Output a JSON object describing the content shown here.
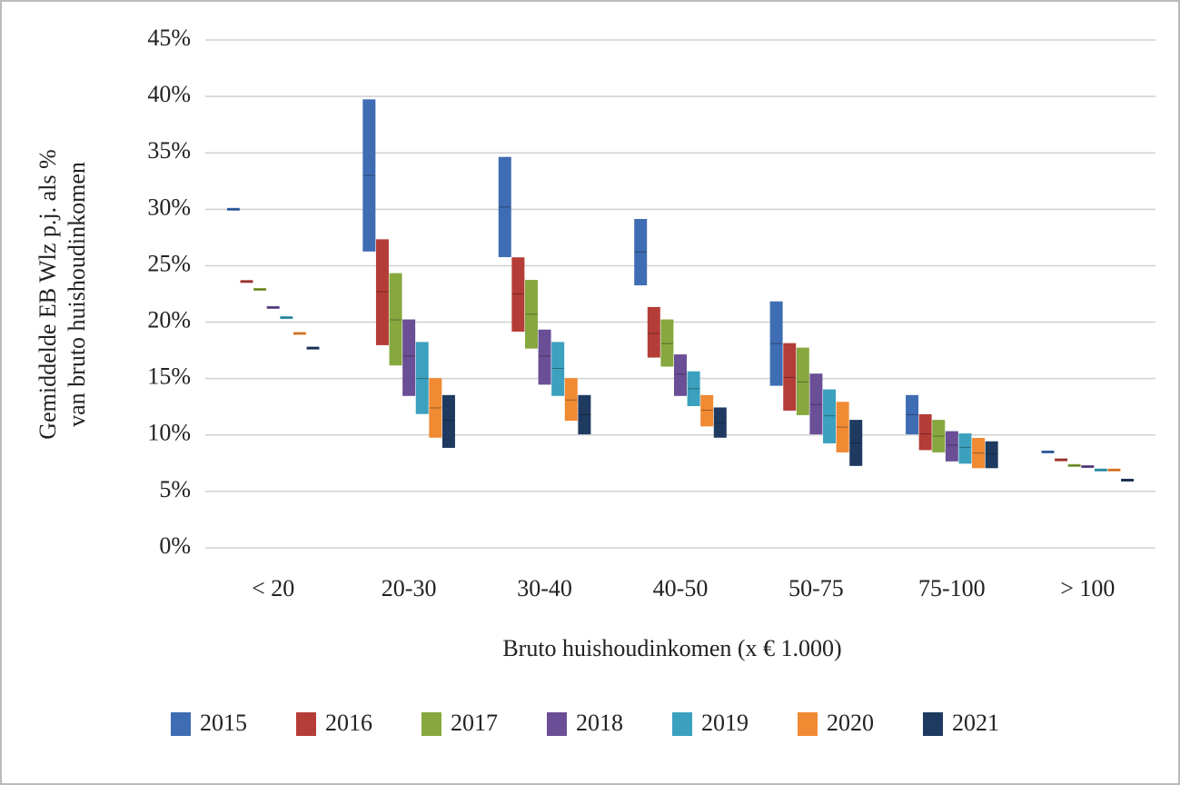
{
  "chart_data": {
    "type": "floating-bar",
    "y_label": [
      "Gemiddelde EB Wlz p.j. als %",
      "van bruto huishoudinkomen"
    ],
    "x_label": "Bruto huishoudinkomen (x € 1.000)",
    "categories": [
      "< 20",
      "20-30",
      "30-40",
      "40-50",
      "50-75",
      "75-100",
      "> 100"
    ],
    "ylim": [
      0,
      45
    ],
    "yticks": [
      {
        "value": 0,
        "label": "0%"
      },
      {
        "value": 5,
        "label": "5%"
      },
      {
        "value": 10,
        "label": "10%"
      },
      {
        "value": 15,
        "label": "15%"
      },
      {
        "value": 20,
        "label": "20%"
      },
      {
        "value": 25,
        "label": "25%"
      },
      {
        "value": 30,
        "label": "30%"
      },
      {
        "value": 35,
        "label": "35%"
      },
      {
        "value": 40,
        "label": "40%"
      },
      {
        "value": 45,
        "label": "45%"
      }
    ],
    "grid": true,
    "series": [
      {
        "name": "2015",
        "color": "#3f6db4",
        "low": [
          30.0,
          26.3,
          25.8,
          23.3,
          14.4,
          10.1,
          8.5
        ],
        "high": [
          30.0,
          39.7,
          34.6,
          29.1,
          21.8,
          13.5,
          8.5
        ],
        "mid": [
          30.0,
          33.0,
          30.2,
          26.2,
          18.1,
          11.8,
          8.5
        ]
      },
      {
        "name": "2016",
        "color": "#b53d38",
        "low": [
          23.6,
          18.0,
          19.2,
          16.9,
          12.2,
          8.7,
          7.8
        ],
        "high": [
          23.6,
          27.3,
          25.7,
          21.3,
          18.1,
          11.8,
          7.8
        ],
        "mid": [
          23.6,
          22.7,
          22.5,
          19.0,
          15.1,
          10.1,
          7.8
        ]
      },
      {
        "name": "2017",
        "color": "#86a83f",
        "low": [
          22.9,
          16.2,
          17.7,
          16.1,
          11.8,
          8.5,
          7.3
        ],
        "high": [
          22.9,
          24.3,
          23.7,
          20.2,
          17.7,
          11.3,
          7.3
        ],
        "mid": [
          22.9,
          20.2,
          20.7,
          18.1,
          14.7,
          9.9,
          7.3
        ]
      },
      {
        "name": "2018",
        "color": "#6b4f96",
        "low": [
          21.3,
          13.5,
          14.5,
          13.5,
          10.1,
          7.7,
          7.2
        ],
        "high": [
          21.3,
          20.2,
          19.3,
          17.1,
          15.4,
          10.3,
          7.2
        ],
        "mid": [
          21.3,
          17.0,
          17.0,
          15.4,
          12.7,
          9.1,
          7.2
        ]
      },
      {
        "name": "2019",
        "color": "#3ba1be",
        "low": [
          20.4,
          11.9,
          13.5,
          12.6,
          9.3,
          7.5,
          6.9
        ],
        "high": [
          20.4,
          18.2,
          18.2,
          15.6,
          14.0,
          10.1,
          6.9
        ],
        "mid": [
          20.4,
          15.0,
          15.9,
          14.1,
          11.7,
          8.9,
          6.9
        ]
      },
      {
        "name": "2020",
        "color": "#f08a33",
        "low": [
          19.0,
          9.8,
          11.3,
          10.8,
          8.5,
          7.1,
          6.9
        ],
        "high": [
          19.0,
          15.0,
          15.0,
          13.5,
          12.9,
          9.7,
          6.9
        ],
        "mid": [
          19.0,
          12.4,
          13.1,
          12.2,
          10.7,
          8.4,
          6.9
        ]
      },
      {
        "name": "2021",
        "color": "#1f3a60",
        "low": [
          17.7,
          8.9,
          10.1,
          9.8,
          7.3,
          7.1,
          6.0
        ],
        "high": [
          17.7,
          13.5,
          13.5,
          12.4,
          11.3,
          9.4,
          6.0
        ],
        "mid": [
          17.7,
          11.3,
          11.8,
          11.1,
          9.3,
          8.3,
          6.0
        ]
      }
    ]
  }
}
